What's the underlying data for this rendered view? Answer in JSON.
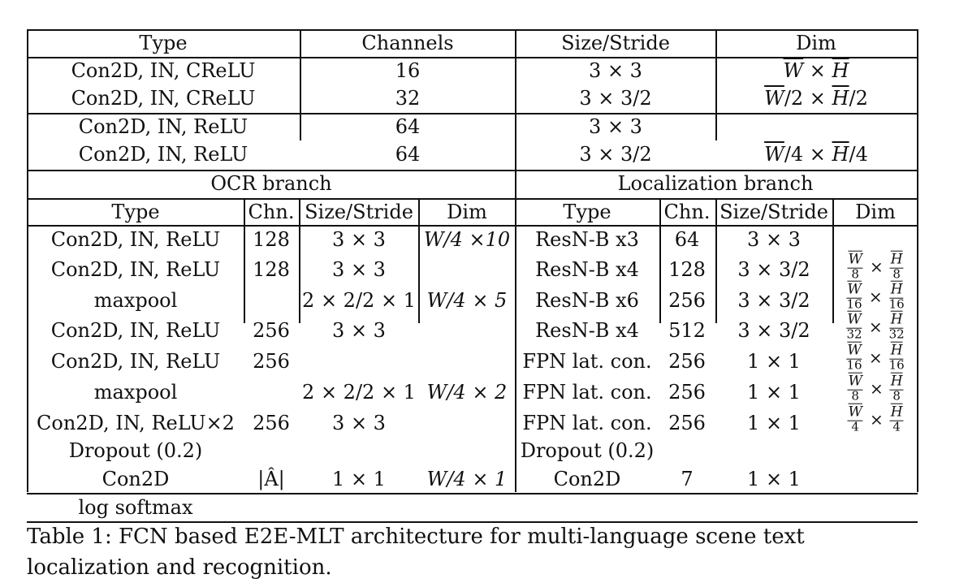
{
  "top_table": {
    "headers": [
      "Type",
      "Channels",
      "Size/Stride",
      "Dim"
    ],
    "rows": [
      {
        "type": "Con2D, IN, CReLU",
        "channels": "16",
        "size": "3 × 3"
      },
      {
        "type": "Con2D, IN, CReLU",
        "channels": "32",
        "size": "3 × 3/2"
      },
      {
        "type": "Con2D, IN, ReLU",
        "channels": "64",
        "size": "3 × 3"
      },
      {
        "type": "Con2D, IN, ReLU",
        "channels": "64",
        "size": "3 × 3/2"
      }
    ],
    "dims": [
      {
        "w": "W",
        "sep": " × ",
        "h": "H",
        "suffix": ""
      },
      {
        "w": "W",
        "mid": "/2 × ",
        "h": "H",
        "suffix": "/2"
      },
      {
        "w": "W",
        "mid": "/4 × ",
        "h": "H",
        "suffix": "/4"
      }
    ]
  },
  "branches": {
    "ocr": "OCR branch",
    "loc": "Localization branch"
  },
  "sub_headers": {
    "ocr": [
      "Type",
      "Chn.",
      "Size/Stride",
      "Dim"
    ],
    "loc": [
      "Type",
      "Chn.",
      "Size/Stride",
      "Dim"
    ]
  },
  "ocr_rows": [
    {
      "type": "Con2D, IN, ReLU",
      "chn": "128",
      "size": "3 × 3",
      "dim": "W/4 ×10"
    },
    {
      "type": "Con2D, IN, ReLU",
      "chn": "128",
      "size": "3 × 3",
      "dim": ""
    },
    {
      "type": "maxpool",
      "chn": "",
      "size": "2 × 2/2 × 1",
      "dim": "W/4 × 5"
    },
    {
      "type": "Con2D, IN, ReLU",
      "chn": "256",
      "size": "3 × 3",
      "dim": ""
    },
    {
      "type": "Con2D, IN, ReLU",
      "chn": "256",
      "size": "",
      "dim": ""
    },
    {
      "type": "maxpool",
      "chn": "",
      "size": "2 × 2/2 × 1",
      "dim": "W/4 × 2"
    },
    {
      "type": "Con2D, IN, ReLU×2",
      "chn": "256",
      "size": "3 × 3",
      "dim": ""
    },
    {
      "type": "Dropout (0.2)",
      "chn": "",
      "size": "",
      "dim": ""
    },
    {
      "type": "Con2D",
      "chn": "|Â|",
      "size": "1 × 1",
      "dim": "W/4 × 1"
    },
    {
      "type": "log softmax",
      "chn": "",
      "size": "",
      "dim": ""
    }
  ],
  "loc_rows": [
    {
      "type": "ResN-B x3",
      "chn": "64",
      "size": "3 × 3"
    },
    {
      "type": "ResN-B x4",
      "chn": "128",
      "size": "3 × 3/2"
    },
    {
      "type": "ResN-B x6",
      "chn": "256",
      "size": "3 × 3/2"
    },
    {
      "type": "ResN-B x4",
      "chn": "512",
      "size": "3 × 3/2"
    },
    {
      "type": "FPN lat. con.",
      "chn": "256",
      "size": "1 × 1"
    },
    {
      "type": "FPN lat. con.",
      "chn": "256",
      "size": "1 × 1"
    },
    {
      "type": "FPN lat. con.",
      "chn": "256",
      "size": "1 × 1"
    },
    {
      "type": "Dropout (0.2)",
      "chn": "",
      "size": ""
    },
    {
      "type": "Con2D",
      "chn": "7",
      "size": "1 × 1"
    }
  ],
  "loc_dims": [
    {
      "w": "W",
      "wd": "8",
      "h": "H",
      "hd": "8"
    },
    {
      "w": "W",
      "wd": "16",
      "h": "H",
      "hd": "16"
    },
    {
      "w": "W",
      "wd": "32",
      "h": "H",
      "hd": "32"
    },
    {
      "w": "W",
      "wd": "16",
      "h": "H",
      "hd": "16"
    },
    {
      "w": "W",
      "wd": "8",
      "h": "H",
      "hd": "8"
    },
    {
      "w": "W",
      "wd": "4",
      "h": "H",
      "hd": "4"
    }
  ],
  "times_symbol": "×",
  "caption": "Table 1: FCN based E2E-MLT architecture for multi-language scene text localization and recognition."
}
